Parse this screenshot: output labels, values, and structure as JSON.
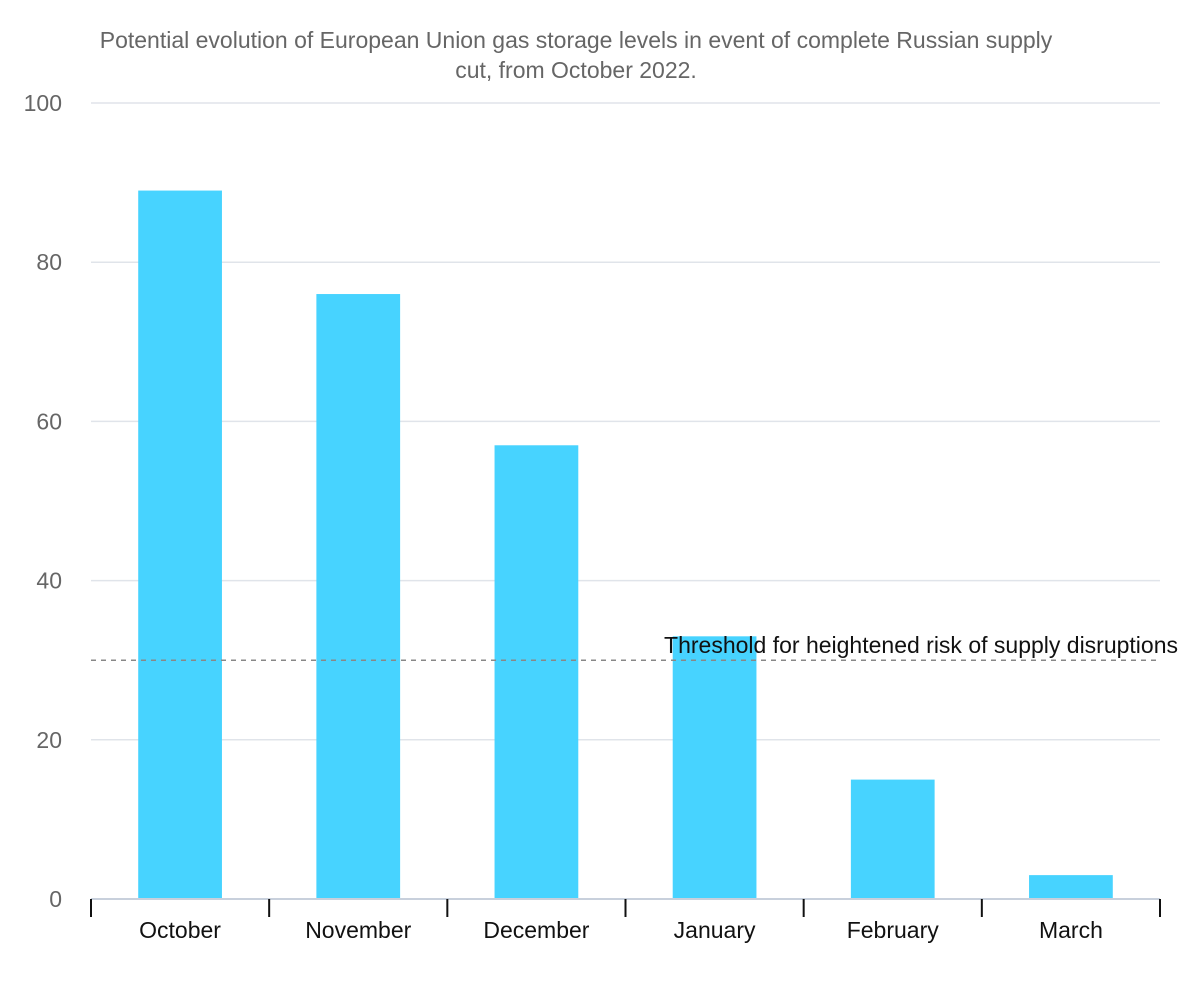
{
  "chart_data": {
    "type": "bar",
    "title_lines": [
      "Potential evolution of European Union gas storage levels in event of complete Russian supply",
      "cut, from October 2022."
    ],
    "categories": [
      "October",
      "November",
      "December",
      "January",
      "February",
      "March"
    ],
    "values": [
      89,
      76,
      57,
      33,
      15,
      3
    ],
    "ylim": [
      0,
      100
    ],
    "yticks": [
      0,
      20,
      40,
      60,
      80,
      100
    ],
    "grid": true,
    "threshold": {
      "value": 30,
      "label": "Threshold for heightened risk of supply disruptions"
    },
    "colors": {
      "bar": "#47d3ff",
      "grid": "#e0e4ea",
      "threshold": "#888888",
      "axis": "#c8d0dc"
    }
  }
}
